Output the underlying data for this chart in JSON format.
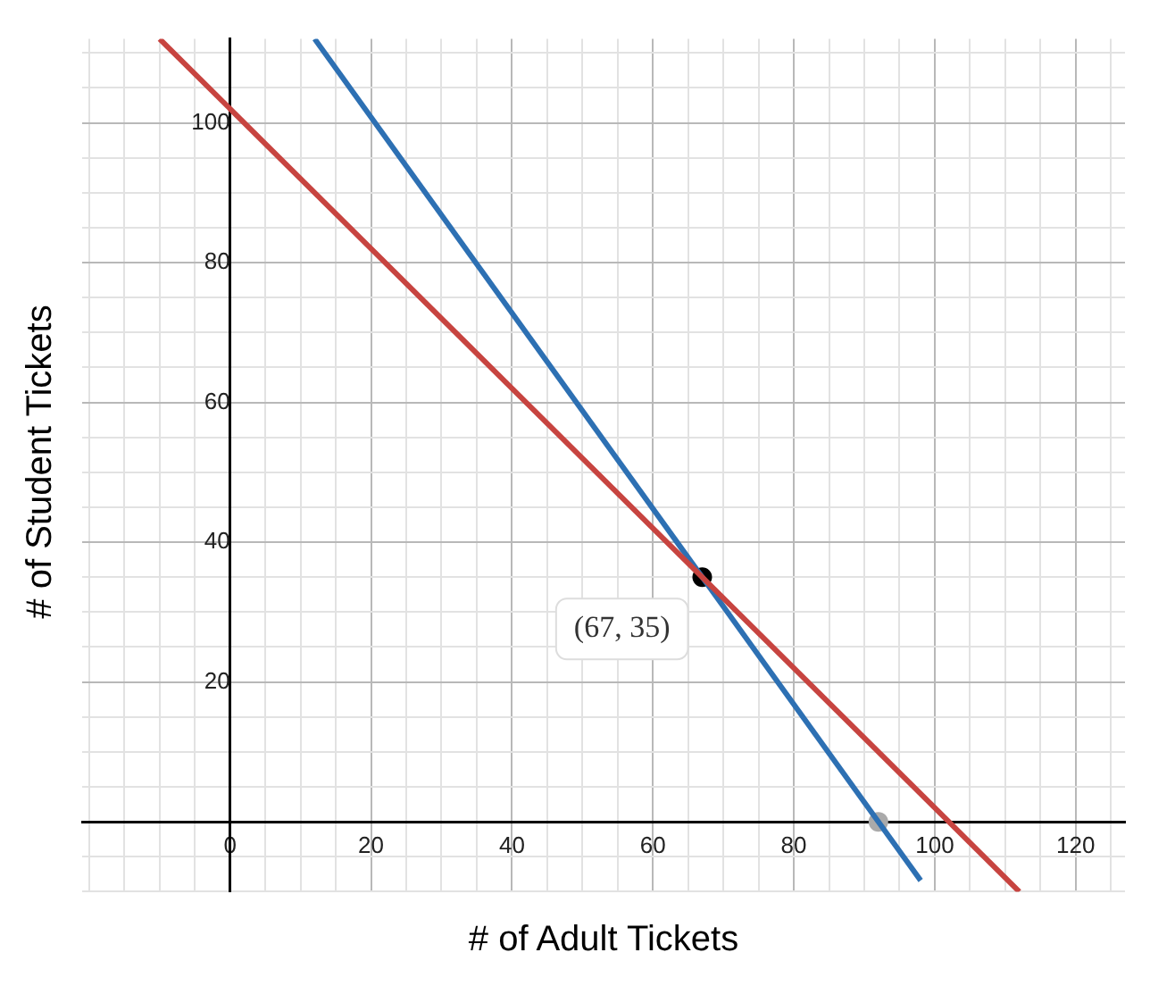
{
  "chart_data": {
    "type": "line",
    "xlabel": "# of Adult Tickets",
    "ylabel": "# of Student Tickets",
    "xlim": [
      -21,
      127
    ],
    "ylim": [
      -10,
      112
    ],
    "xticks": [
      {
        "value": -20,
        "label": null
      },
      {
        "value": -15,
        "label": null
      },
      {
        "value": -10,
        "label": null
      },
      {
        "value": -5,
        "label": null
      },
      0,
      {
        "value": 5,
        "label": null
      },
      {
        "value": 10,
        "label": null
      },
      {
        "value": 15,
        "label": null
      },
      20,
      {
        "value": 25,
        "label": null
      },
      {
        "value": 30,
        "label": null
      },
      {
        "value": 35,
        "label": null
      },
      40,
      {
        "value": 45,
        "label": null
      },
      {
        "value": 50,
        "label": null
      },
      {
        "value": 55,
        "label": null
      },
      60,
      {
        "value": 65,
        "label": null
      },
      {
        "value": 70,
        "label": null
      },
      {
        "value": 75,
        "label": null
      },
      80,
      {
        "value": 85,
        "label": null
      },
      {
        "value": 90,
        "label": null
      },
      {
        "value": 95,
        "label": null
      },
      100,
      {
        "value": 105,
        "label": null
      },
      {
        "value": 110,
        "label": null
      },
      {
        "value": 115,
        "label": null
      },
      120,
      {
        "value": 125,
        "label": null
      }
    ],
    "yticks": [
      {
        "value": -10,
        "label": null
      },
      {
        "value": -5,
        "label": null
      },
      {
        "value": 0,
        "label": null
      },
      {
        "value": 5,
        "label": null
      },
      {
        "value": 10,
        "label": null
      },
      {
        "value": 15,
        "label": null
      },
      20,
      {
        "value": 25,
        "label": null
      },
      {
        "value": 30,
        "label": null
      },
      {
        "value": 35,
        "label": null
      },
      40,
      {
        "value": 45,
        "label": null
      },
      {
        "value": 50,
        "label": null
      },
      {
        "value": 55,
        "label": null
      },
      60,
      {
        "value": 65,
        "label": null
      },
      {
        "value": 70,
        "label": null
      },
      {
        "value": 75,
        "label": null
      },
      80,
      {
        "value": 85,
        "label": null
      },
      {
        "value": 90,
        "label": null
      },
      {
        "value": 95,
        "label": null
      },
      100,
      {
        "value": 105,
        "label": null
      },
      {
        "value": 110,
        "label": null
      }
    ],
    "grid": true,
    "series": [
      {
        "color": "#c74440",
        "x": [
          -10,
          112
        ],
        "values": [
          112,
          -10
        ]
      },
      {
        "color": "#2d70b3",
        "x": [
          12,
          98
        ],
        "values": [
          112,
          -8.4
        ]
      },
      {
        "type": "scatter",
        "colors": [
          "#000000",
          "#aaaaaa"
        ],
        "x": [
          67,
          92
        ],
        "values": [
          35,
          0
        ]
      }
    ],
    "annotations": [
      {
        "text": "(67, 35)",
        "x": 67,
        "y": 35
      }
    ]
  }
}
